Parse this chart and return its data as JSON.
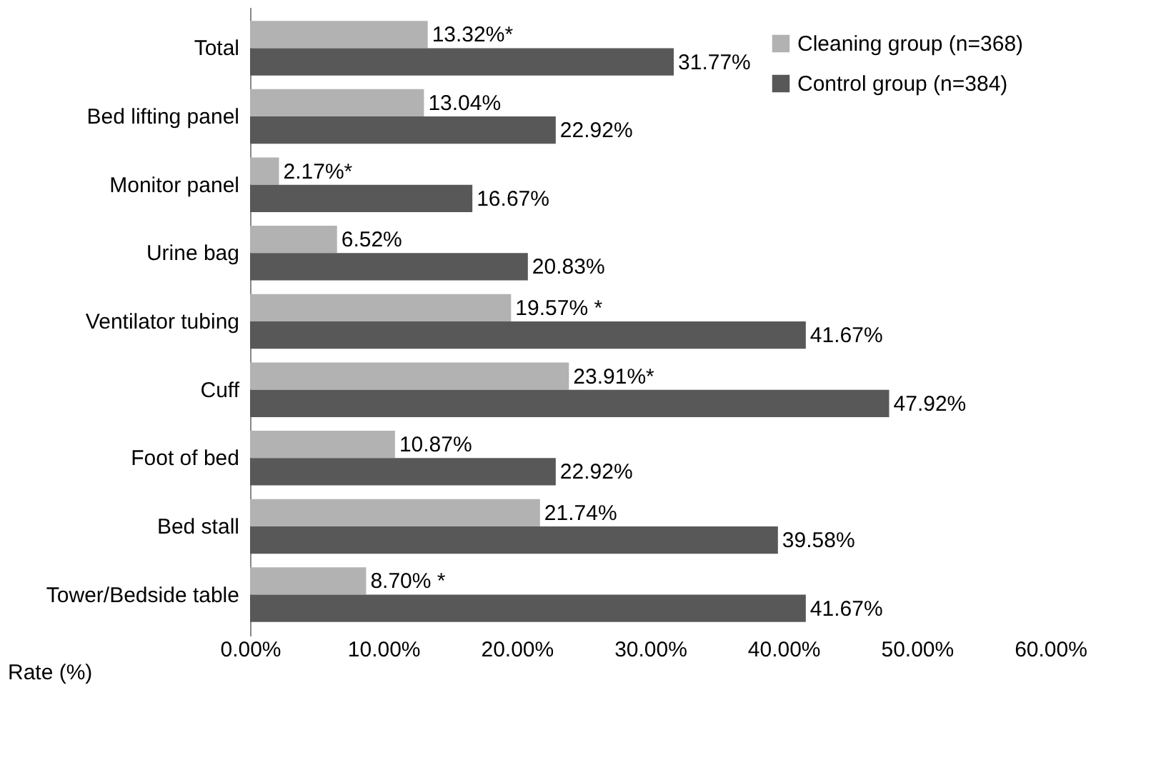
{
  "chart_data": {
    "type": "bar",
    "orientation": "horizontal",
    "xlabel": "Rate (%)",
    "categories": [
      "Total",
      "Bed lifting panel",
      "Monitor panel",
      "Urine bag",
      "Ventilator tubing",
      "Cuff",
      "Foot of bed",
      "Bed stall",
      "Tower/Bedside table"
    ],
    "series": [
      {
        "name": "Cleaning group (n=368)",
        "color": "#b2b2b2",
        "values": [
          13.32,
          13.04,
          2.17,
          6.52,
          19.57,
          23.91,
          10.87,
          21.74,
          8.7
        ],
        "value_labels": [
          "13.32%*",
          "13.04%",
          "2.17%*",
          "6.52%",
          "19.57% *",
          "23.91%*",
          "10.87%",
          "21.74%",
          "8.70% *"
        ]
      },
      {
        "name": "Control group (n=384)",
        "color": "#585858",
        "values": [
          31.77,
          22.92,
          16.67,
          20.83,
          41.67,
          47.92,
          22.92,
          39.58,
          41.67
        ],
        "value_labels": [
          "31.77%",
          "22.92%",
          "16.67%",
          "20.83%",
          "41.67%",
          "47.92%",
          "22.92%",
          "39.58%",
          "41.67%"
        ]
      }
    ],
    "xlim": [
      0,
      60
    ],
    "xticks": [
      {
        "value": 0,
        "label": "0.00%"
      },
      {
        "value": 10,
        "label": "10.00%"
      },
      {
        "value": 20,
        "label": "20.00%"
      },
      {
        "value": 30,
        "label": "30.00%"
      },
      {
        "value": 40,
        "label": "40.00%"
      },
      {
        "value": 50,
        "label": "50.00%"
      },
      {
        "value": 60,
        "label": "60.00%"
      }
    ],
    "grid": false,
    "legend": "top right"
  }
}
